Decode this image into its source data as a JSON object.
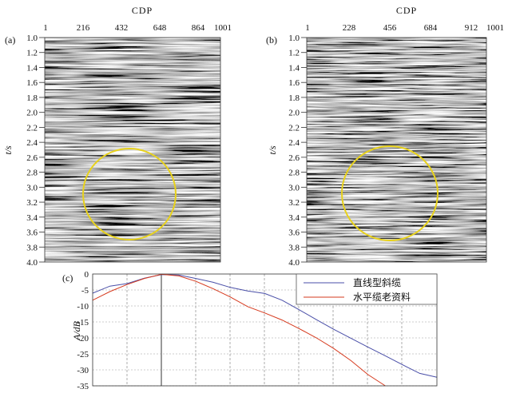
{
  "panels": [
    {
      "id": "a",
      "label": "(a)",
      "x_title": "CDP",
      "x_ticks": [
        "1",
        "216",
        "432",
        "648",
        "864",
        "1001"
      ],
      "y_title": "t/s",
      "y_ticks": [
        "1.0",
        "1.2",
        "1.4",
        "1.6",
        "1.8",
        "2.0",
        "2.2",
        "2.4",
        "2.6",
        "2.8",
        "3.0",
        "3.2",
        "3.4",
        "3.6",
        "3.8",
        "4.0"
      ],
      "highlight_color": "#e8d21c",
      "circle_cdp": 432,
      "circle_t": 3.08
    },
    {
      "id": "b",
      "label": "(b)",
      "x_title": "CDP",
      "x_ticks": [
        "1",
        "228",
        "456",
        "684",
        "912",
        "1001"
      ],
      "y_title": "t/s",
      "y_ticks": [
        "1.0",
        "1.2",
        "1.4",
        "1.6",
        "1.8",
        "2.0",
        "2.2",
        "2.4",
        "2.6",
        "2.8",
        "3.0",
        "3.2",
        "3.4",
        "3.6",
        "3.8",
        "4.0"
      ],
      "highlight_color": "#e8d21c",
      "circle_cdp": 456,
      "circle_t": 3.08
    }
  ],
  "chart_data": {
    "type": "line",
    "label": "(c)",
    "ylabel": "A/dB",
    "y_ticks": [
      "0",
      "-5",
      "-10",
      "-15",
      "-20",
      "-25",
      "-30",
      "-35"
    ],
    "ylim": [
      -35,
      0
    ],
    "legend_position": "top-right",
    "series": [
      {
        "name": "直线型斜缆",
        "color": "#4a4fa8",
        "values": [
          -6,
          -3.8,
          -3,
          -1.3,
          -0.2,
          -0.3,
          -1.4,
          -2.6,
          -4.2,
          -5.3,
          -6.1,
          -8.2,
          -11.2,
          -14.3,
          -17.3,
          -20.1,
          -22.9,
          -25.6,
          -28.4,
          -31.1,
          -32.3
        ]
      },
      {
        "name": "水平缆老资料",
        "color": "#d63a1e",
        "values": [
          -8.2,
          -5.5,
          -3.3,
          -1.4,
          -0.1,
          -0.6,
          -2.3,
          -4.6,
          -7.2,
          -10.2,
          -12.2,
          -14.4,
          -17.1,
          -20.0,
          -23.3,
          -27.1,
          -31.5,
          -35.5
        ]
      }
    ]
  }
}
